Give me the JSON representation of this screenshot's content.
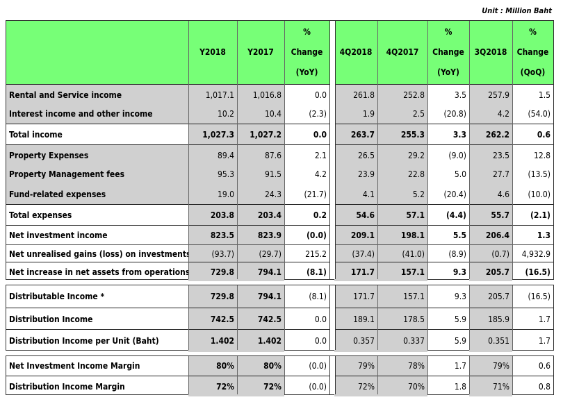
{
  "unit": "Unit :  Million Baht",
  "headers": {
    "y2018": "Y2018",
    "y2017": "Y2017",
    "chg_yoy": [
      "%",
      "Change",
      "(YoY)"
    ],
    "q4_2018": "4Q2018",
    "q4_2017": "4Q2017",
    "chg_yoy_q": [
      "%",
      "Change",
      "(YoY)"
    ],
    "q3_2018": "3Q2018",
    "chg_qoq": [
      "%",
      "Change",
      "(QoQ)"
    ]
  },
  "rows": [
    {
      "label": "Rental  and Service income",
      "values": [
        "1,017.1",
        "1,016.8",
        "0.0",
        "261.8",
        "252.8",
        "3.5",
        "257.9",
        "1.5"
      ]
    },
    {
      "label": "Interest income and other income",
      "values": [
        "10.2",
        "10.4",
        "(2.3)",
        "1.9",
        "2.5",
        "(20.8)",
        "4.2",
        "(54.0)"
      ]
    },
    {
      "label": "Total income",
      "values": [
        "1,027.3",
        "1,027.2",
        "0.0",
        "263.7",
        "255.3",
        "3.3",
        "262.2",
        "0.6"
      ]
    },
    {
      "label": "Property Expenses",
      "values": [
        "89.4",
        "87.6",
        "2.1",
        "26.5",
        "29.2",
        "(9.0)",
        "23.5",
        "12.8"
      ]
    },
    {
      "label": "Property Management fees",
      "values": [
        "95.3",
        "91.5",
        "4.2",
        "23.9",
        "22.8",
        "5.0",
        "27.7",
        "(13.5)"
      ]
    },
    {
      "label": "Fund-related expenses",
      "values": [
        "19.0",
        "24.3",
        "(21.7)",
        "4.1",
        "5.2",
        "(20.4)",
        "4.6",
        "(10.0)"
      ]
    },
    {
      "label": "Total expenses",
      "values": [
        "203.8",
        "203.4",
        "0.2",
        "54.6",
        "57.1",
        "(4.4)",
        "55.7",
        "(2.1)"
      ]
    },
    {
      "label": "Net investment income",
      "values": [
        "823.5",
        "823.9",
        "(0.0)",
        "209.1",
        "198.1",
        "5.5",
        "206.4",
        "1.3"
      ]
    },
    {
      "label": "Net unrealised gains (loss) on investments",
      "values": [
        "(93.7)",
        "(29.7)",
        "215.2",
        "(37.4)",
        "(41.0)",
        "(8.9)",
        "(0.7)",
        "4,932.9"
      ]
    },
    {
      "label": "Net increase in net assets from operations",
      "values": [
        "729.8",
        "794.1",
        "(8.1)",
        "171.7",
        "157.1",
        "9.3",
        "205.7",
        "(16.5)"
      ]
    },
    {
      "label": "Distributable Income *",
      "values": [
        "729.8",
        "794.1",
        "(8.1)",
        "171.7",
        "157.1",
        "9.3",
        "205.7",
        "(16.5)"
      ]
    },
    {
      "label": "Distribution Income",
      "values": [
        "742.5",
        "742.5",
        "0.0",
        "189.1",
        "178.5",
        "5.9",
        "185.9",
        "1.7"
      ]
    },
    {
      "label": "Distribution Income per Unit (Baht)",
      "values": [
        "1.402",
        "1.402",
        "0.0",
        "0.357",
        "0.337",
        "5.9",
        "0.351",
        "1.7"
      ]
    },
    {
      "label": "Net Investment Income Margin",
      "values": [
        "80%",
        "80%",
        "(0.0)",
        "79%",
        "78%",
        "1.7",
        "79%",
        "0.6"
      ]
    },
    {
      "label": "Distribution Income Margin",
      "values": [
        "72%",
        "72%",
        "(0.0)",
        "72%",
        "70%",
        "1.8",
        "71%",
        "0.8"
      ]
    }
  ]
}
